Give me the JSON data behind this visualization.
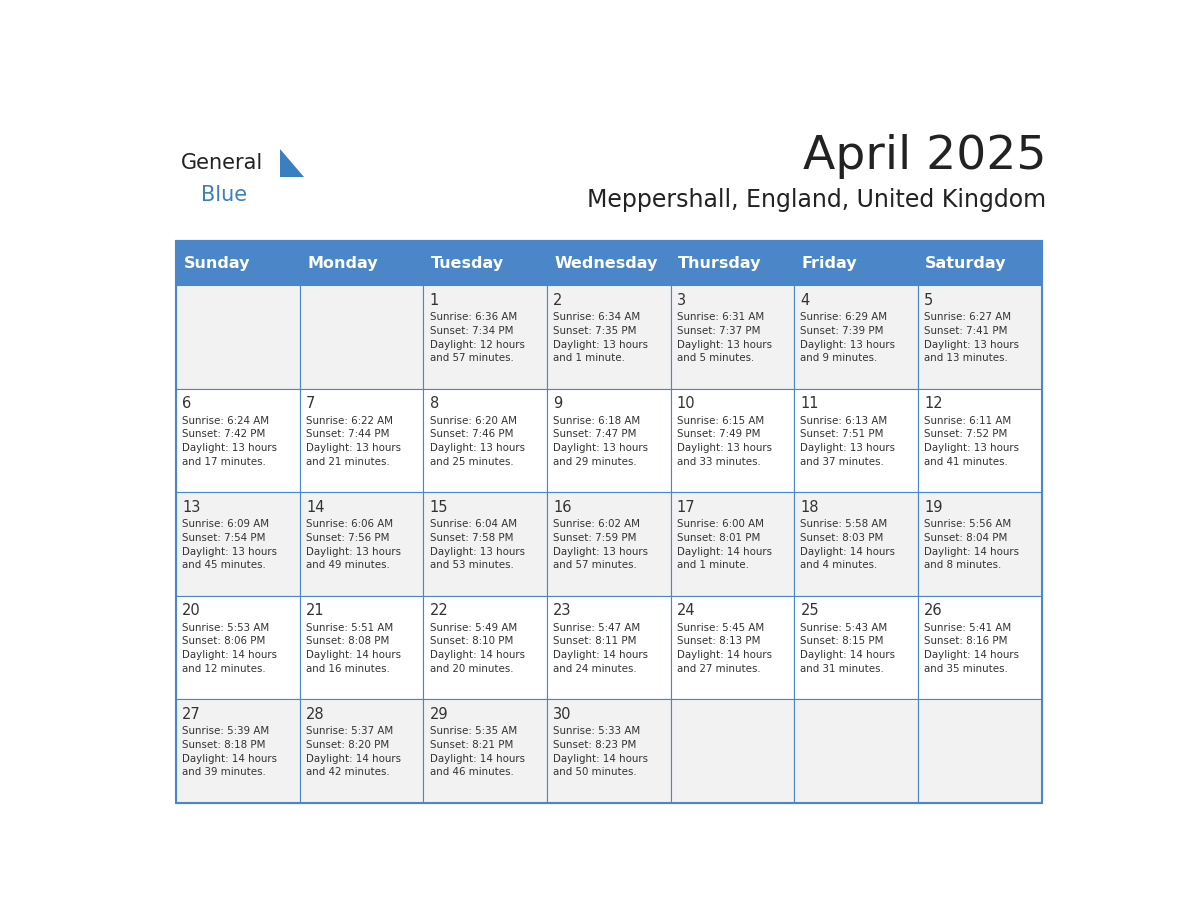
{
  "title": "April 2025",
  "subtitle": "Meppershall, England, United Kingdom",
  "days_of_week": [
    "Sunday",
    "Monday",
    "Tuesday",
    "Wednesday",
    "Thursday",
    "Friday",
    "Saturday"
  ],
  "header_bg": "#4a86c8",
  "header_text": "#ffffff",
  "cell_bg_light": "#f2f2f2",
  "cell_bg_white": "#ffffff",
  "border_color": "#4a86c8",
  "text_color": "#333333",
  "title_color": "#222222",
  "calendar_data": [
    [
      {
        "day": "",
        "info": ""
      },
      {
        "day": "",
        "info": ""
      },
      {
        "day": "1",
        "info": "Sunrise: 6:36 AM\nSunset: 7:34 PM\nDaylight: 12 hours\nand 57 minutes."
      },
      {
        "day": "2",
        "info": "Sunrise: 6:34 AM\nSunset: 7:35 PM\nDaylight: 13 hours\nand 1 minute."
      },
      {
        "day": "3",
        "info": "Sunrise: 6:31 AM\nSunset: 7:37 PM\nDaylight: 13 hours\nand 5 minutes."
      },
      {
        "day": "4",
        "info": "Sunrise: 6:29 AM\nSunset: 7:39 PM\nDaylight: 13 hours\nand 9 minutes."
      },
      {
        "day": "5",
        "info": "Sunrise: 6:27 AM\nSunset: 7:41 PM\nDaylight: 13 hours\nand 13 minutes."
      }
    ],
    [
      {
        "day": "6",
        "info": "Sunrise: 6:24 AM\nSunset: 7:42 PM\nDaylight: 13 hours\nand 17 minutes."
      },
      {
        "day": "7",
        "info": "Sunrise: 6:22 AM\nSunset: 7:44 PM\nDaylight: 13 hours\nand 21 minutes."
      },
      {
        "day": "8",
        "info": "Sunrise: 6:20 AM\nSunset: 7:46 PM\nDaylight: 13 hours\nand 25 minutes."
      },
      {
        "day": "9",
        "info": "Sunrise: 6:18 AM\nSunset: 7:47 PM\nDaylight: 13 hours\nand 29 minutes."
      },
      {
        "day": "10",
        "info": "Sunrise: 6:15 AM\nSunset: 7:49 PM\nDaylight: 13 hours\nand 33 minutes."
      },
      {
        "day": "11",
        "info": "Sunrise: 6:13 AM\nSunset: 7:51 PM\nDaylight: 13 hours\nand 37 minutes."
      },
      {
        "day": "12",
        "info": "Sunrise: 6:11 AM\nSunset: 7:52 PM\nDaylight: 13 hours\nand 41 minutes."
      }
    ],
    [
      {
        "day": "13",
        "info": "Sunrise: 6:09 AM\nSunset: 7:54 PM\nDaylight: 13 hours\nand 45 minutes."
      },
      {
        "day": "14",
        "info": "Sunrise: 6:06 AM\nSunset: 7:56 PM\nDaylight: 13 hours\nand 49 minutes."
      },
      {
        "day": "15",
        "info": "Sunrise: 6:04 AM\nSunset: 7:58 PM\nDaylight: 13 hours\nand 53 minutes."
      },
      {
        "day": "16",
        "info": "Sunrise: 6:02 AM\nSunset: 7:59 PM\nDaylight: 13 hours\nand 57 minutes."
      },
      {
        "day": "17",
        "info": "Sunrise: 6:00 AM\nSunset: 8:01 PM\nDaylight: 14 hours\nand 1 minute."
      },
      {
        "day": "18",
        "info": "Sunrise: 5:58 AM\nSunset: 8:03 PM\nDaylight: 14 hours\nand 4 minutes."
      },
      {
        "day": "19",
        "info": "Sunrise: 5:56 AM\nSunset: 8:04 PM\nDaylight: 14 hours\nand 8 minutes."
      }
    ],
    [
      {
        "day": "20",
        "info": "Sunrise: 5:53 AM\nSunset: 8:06 PM\nDaylight: 14 hours\nand 12 minutes."
      },
      {
        "day": "21",
        "info": "Sunrise: 5:51 AM\nSunset: 8:08 PM\nDaylight: 14 hours\nand 16 minutes."
      },
      {
        "day": "22",
        "info": "Sunrise: 5:49 AM\nSunset: 8:10 PM\nDaylight: 14 hours\nand 20 minutes."
      },
      {
        "day": "23",
        "info": "Sunrise: 5:47 AM\nSunset: 8:11 PM\nDaylight: 14 hours\nand 24 minutes."
      },
      {
        "day": "24",
        "info": "Sunrise: 5:45 AM\nSunset: 8:13 PM\nDaylight: 14 hours\nand 27 minutes."
      },
      {
        "day": "25",
        "info": "Sunrise: 5:43 AM\nSunset: 8:15 PM\nDaylight: 14 hours\nand 31 minutes."
      },
      {
        "day": "26",
        "info": "Sunrise: 5:41 AM\nSunset: 8:16 PM\nDaylight: 14 hours\nand 35 minutes."
      }
    ],
    [
      {
        "day": "27",
        "info": "Sunrise: 5:39 AM\nSunset: 8:18 PM\nDaylight: 14 hours\nand 39 minutes."
      },
      {
        "day": "28",
        "info": "Sunrise: 5:37 AM\nSunset: 8:20 PM\nDaylight: 14 hours\nand 42 minutes."
      },
      {
        "day": "29",
        "info": "Sunrise: 5:35 AM\nSunset: 8:21 PM\nDaylight: 14 hours\nand 46 minutes."
      },
      {
        "day": "30",
        "info": "Sunrise: 5:33 AM\nSunset: 8:23 PM\nDaylight: 14 hours\nand 50 minutes."
      },
      {
        "day": "",
        "info": ""
      },
      {
        "day": "",
        "info": ""
      },
      {
        "day": "",
        "info": ""
      }
    ]
  ],
  "logo_text_general": "General",
  "logo_text_blue": "Blue",
  "logo_color_general": "#222222",
  "logo_color_blue": "#3a7fc1",
  "logo_triangle_color": "#3a7fc1"
}
